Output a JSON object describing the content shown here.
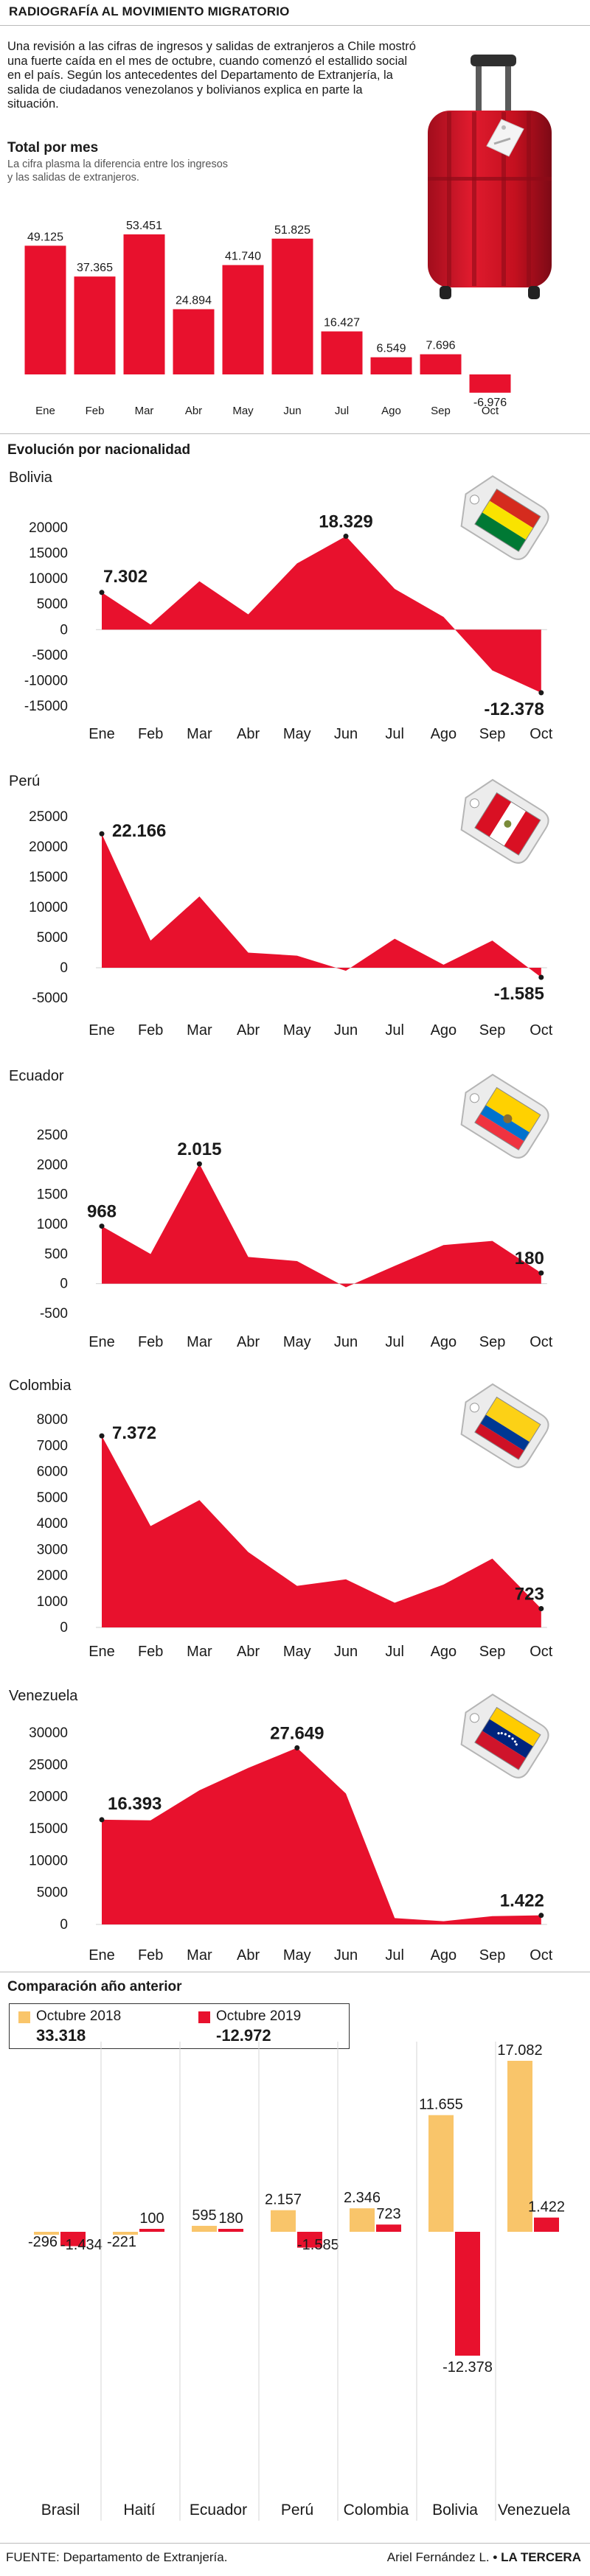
{
  "header": {
    "title": "RADIOGRAFÍA AL MOVIMIENTO MIGRATORIO"
  },
  "intro": {
    "text": "Una revisión a las cifras de ingresos y salidas de extranjeros a Chile mostró una fuerte caída en el mes de octubre, cuando comenzó el estallido social en el país. Según los antecedentes del Departamento de Extranjería, la salida de ciudadanos venezolanos y bolivianos explica en parte la situación."
  },
  "total": {
    "title": "Total por mes",
    "subtitle": "La cifra plasma la diferencia entre los ingresos y las salidas de extranjeros."
  },
  "evolution": {
    "title": "Evolución por nacionalidad"
  },
  "comparison": {
    "title": "Comparación año anterior",
    "legend": [
      {
        "label": "Octubre 2018",
        "total": "33.318",
        "color": "#F9C56A"
      },
      {
        "label": "Octubre 2019",
        "total": "-12.972",
        "color": "#E8112D"
      }
    ]
  },
  "footer": {
    "source": "FUENTE: Departamento de Extranjería.",
    "author": "Ariel Fernández L.",
    "separator": "•",
    "outlet": "LA TERCERA"
  },
  "colors": {
    "red": "#E8112D",
    "yellow": "#F9C56A",
    "text": "#1a1a1a"
  },
  "icons": [
    "suitcase-icon",
    "luggage-tag-bolivia-icon",
    "luggage-tag-peru-icon",
    "luggage-tag-ecuador-icon",
    "luggage-tag-colombia-icon",
    "luggage-tag-venezuela-icon"
  ],
  "chart_data": [
    {
      "type": "bar",
      "title": "Total por mes",
      "categories": [
        "Ene",
        "Feb",
        "Mar",
        "Abr",
        "May",
        "Jun",
        "Jul",
        "Ago",
        "Sep",
        "Oct"
      ],
      "values": [
        49125,
        37365,
        53451,
        24894,
        41740,
        51825,
        16427,
        6549,
        7696,
        -6976
      ],
      "labels": [
        "49.125",
        "37.365",
        "53.451",
        "24.894",
        "41.740",
        "51.825",
        "16.427",
        "6.549",
        "7.696",
        "-6.976"
      ],
      "color": "#E8112D"
    },
    {
      "type": "area",
      "title": "Bolivia",
      "categories": [
        "Ene",
        "Feb",
        "Mar",
        "Abr",
        "May",
        "Jun",
        "Jul",
        "Ago",
        "Sep",
        "Oct"
      ],
      "values": [
        7302,
        1000,
        9500,
        3000,
        13000,
        18329,
        8000,
        2500,
        -8000,
        -12378
      ],
      "annotations": [
        {
          "index": 0,
          "label": "7.302"
        },
        {
          "index": 5,
          "label": "18.329"
        },
        {
          "index": 9,
          "label": "-12.378"
        }
      ],
      "yticks": [
        20000,
        15000,
        10000,
        5000,
        0,
        -5000,
        -10000,
        -15000
      ],
      "ylim": [
        -15000,
        20000
      ],
      "color": "#E8112D"
    },
    {
      "type": "area",
      "title": "Perú",
      "categories": [
        "Ene",
        "Feb",
        "Mar",
        "Abr",
        "May",
        "Jun",
        "Jul",
        "Ago",
        "Sep",
        "Oct"
      ],
      "values": [
        22166,
        4500,
        11800,
        2500,
        2000,
        -500,
        4800,
        500,
        4500,
        -1585
      ],
      "annotations": [
        {
          "index": 0,
          "label": "22.166"
        },
        {
          "index": 9,
          "label": "-1.585"
        }
      ],
      "yticks": [
        25000,
        20000,
        15000,
        10000,
        5000,
        0,
        -5000
      ],
      "ylim": [
        -5000,
        25000
      ],
      "color": "#E8112D"
    },
    {
      "type": "area",
      "title": "Ecuador",
      "categories": [
        "Ene",
        "Feb",
        "Mar",
        "Abr",
        "May",
        "Jun",
        "Jul",
        "Ago",
        "Sep",
        "Oct"
      ],
      "values": [
        968,
        500,
        2015,
        450,
        380,
        -60,
        300,
        650,
        720,
        180
      ],
      "annotations": [
        {
          "index": 0,
          "label": "968"
        },
        {
          "index": 2,
          "label": "2.015"
        },
        {
          "index": 9,
          "label": "180"
        }
      ],
      "yticks": [
        2500,
        2000,
        1500,
        1000,
        500,
        0,
        -500
      ],
      "ylim": [
        -500,
        2500
      ],
      "color": "#E8112D"
    },
    {
      "type": "area",
      "title": "Colombia",
      "categories": [
        "Ene",
        "Feb",
        "Mar",
        "Abr",
        "May",
        "Jun",
        "Jul",
        "Ago",
        "Sep",
        "Oct"
      ],
      "values": [
        7372,
        3900,
        4900,
        2900,
        1600,
        1850,
        950,
        1650,
        2650,
        723
      ],
      "annotations": [
        {
          "index": 0,
          "label": "7.372"
        },
        {
          "index": 9,
          "label": "723"
        }
      ],
      "yticks": [
        8000,
        7000,
        6000,
        5000,
        4000,
        3000,
        2000,
        1000,
        0
      ],
      "ylim": [
        0,
        8000
      ],
      "color": "#E8112D"
    },
    {
      "type": "area",
      "title": "Venezuela",
      "categories": [
        "Ene",
        "Feb",
        "Mar",
        "Abr",
        "May",
        "Jun",
        "Jul",
        "Ago",
        "Sep",
        "Oct"
      ],
      "values": [
        16393,
        16300,
        21000,
        24500,
        27649,
        20500,
        1000,
        500,
        1300,
        1422
      ],
      "annotations": [
        {
          "index": 0,
          "label": "16.393"
        },
        {
          "index": 4,
          "label": "27.649"
        },
        {
          "index": 9,
          "label": "1.422"
        }
      ],
      "yticks": [
        30000,
        25000,
        20000,
        15000,
        10000,
        5000,
        0
      ],
      "ylim": [
        0,
        30000
      ],
      "color": "#E8112D"
    },
    {
      "type": "bar",
      "title": "Comparación año anterior",
      "categories": [
        "Brasil",
        "Haití",
        "Ecuador",
        "Perú",
        "Colombia",
        "Bolivia",
        "Venezuela"
      ],
      "series": [
        {
          "name": "Octubre 2018",
          "color": "#F9C56A",
          "values": [
            -296,
            -221,
            595,
            2157,
            2346,
            11655,
            17082
          ],
          "labels": [
            "-296",
            "-221",
            "595",
            "2.157",
            "2.346",
            "11.655",
            "17.082"
          ]
        },
        {
          "name": "Octubre 2019",
          "color": "#E8112D",
          "values": [
            -1434,
            100,
            180,
            -1585,
            723,
            -12378,
            1422
          ],
          "labels": [
            "-1.434",
            "100",
            "180",
            "-1.585",
            "723",
            "-12.378",
            "1.422"
          ]
        }
      ]
    }
  ]
}
